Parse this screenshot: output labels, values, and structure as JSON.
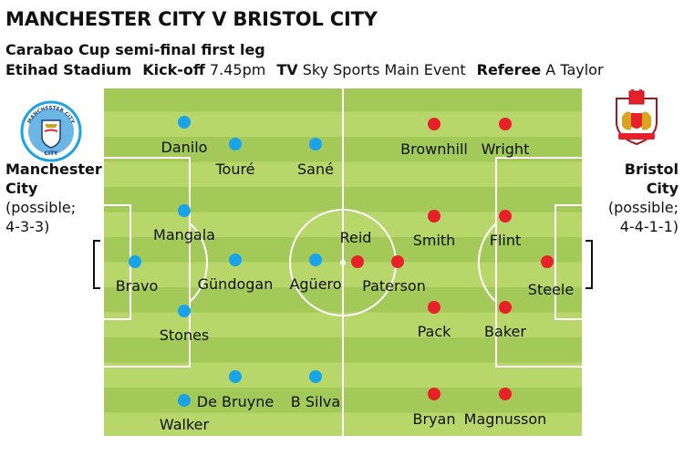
{
  "header": {
    "title": "MANCHESTER CITY V BRISTOL CITY",
    "subtitle": "Carabao Cup semi-final first leg",
    "venue": "Etihad Stadium",
    "kickoff_label": "Kick-off",
    "kickoff_time": "7.45pm",
    "tv_label": "TV",
    "tv_value": "Sky Sports Main Event",
    "referee_label": "Referee",
    "referee_value": "A Taylor"
  },
  "home": {
    "name_line1": "Manchester",
    "name_line2": "City",
    "note_line1": "(possible;",
    "note_line2": "4-3-3)",
    "badge_text": "MANCHESTER CITY",
    "badge_bottom": "CITY",
    "color": "#1aa3e8",
    "players": [
      "Danilo",
      "Touré",
      "Sané",
      "Mangala",
      "Bravo",
      "Gündogan",
      "Agüero",
      "Stones",
      "De Bruyne",
      "B Silva",
      "Walker"
    ]
  },
  "away": {
    "name_line1": "Bristol",
    "name_line2": "City",
    "note_line1": "(possible;",
    "note_line2": "4-4-1-1)",
    "color": "#e8202a",
    "players": [
      "Brownhill",
      "Wright",
      "Reid",
      "Smith",
      "Flint",
      "Paterson",
      "Steele",
      "Pack",
      "Baker",
      "Bryan",
      "Magnusson"
    ]
  },
  "colors": {
    "pitch_light": "#b8d76b",
    "pitch_dark": "#a3c958",
    "lines": "#ffffff"
  }
}
